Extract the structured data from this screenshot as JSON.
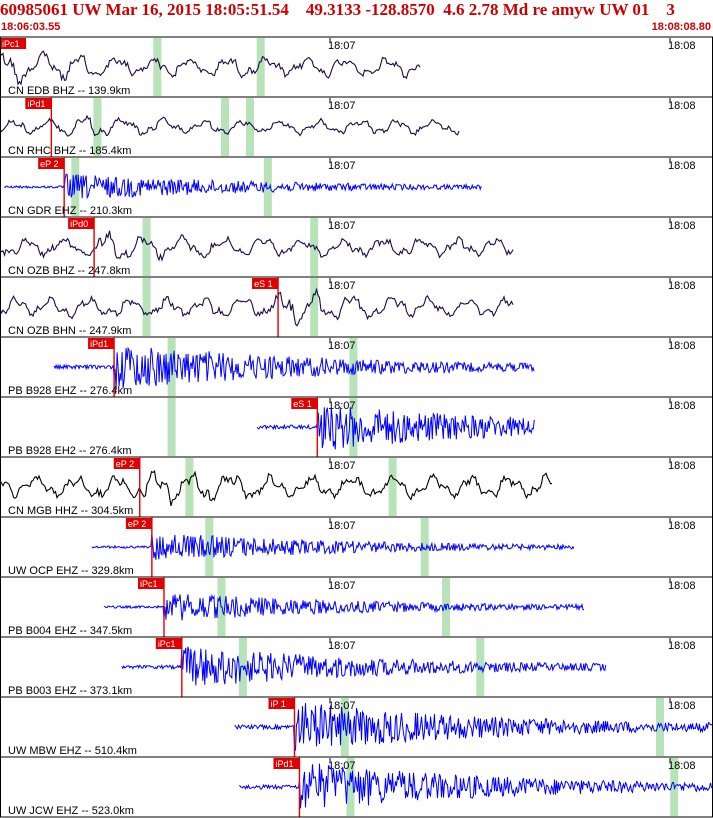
{
  "header": {
    "title": "60985061 UW Mar 16, 2015 18:05:51.54    49.3133 -128.8570  4.6 2.78 Md re amyw UW 01    3",
    "start_time": "18:06:03.55",
    "end_time": "18:08:08.80"
  },
  "time_ticks": {
    "t1": "18:07",
    "t2": "18:08"
  },
  "colors": {
    "title": "#cc0000",
    "pick_box": "#e00000",
    "short_period": "#0000ff",
    "broadband": "#1a0a4a",
    "hh": "#000000",
    "coda_window": "#b8e2b8"
  },
  "traces": [
    {
      "label": "CN EDB BHZ -- 139.9km",
      "pick": "iPc1",
      "pick_frac": 0.0,
      "kind": "bb",
      "amp": 0.75,
      "end_frac": 0.59,
      "coda": [
        0.215,
        0.36
      ]
    },
    {
      "label": "CN RHC BHZ -- 185.4km",
      "pick": "iPd1",
      "pick_frac": 0.072,
      "kind": "bb",
      "amp": 0.55,
      "end_frac": 0.645,
      "coda": [
        0.131,
        0.31,
        0.345
      ]
    },
    {
      "label": "CN GDR EHZ -- 210.3km",
      "pick": "eP 2",
      "pick_frac": 0.09,
      "kind": "sp",
      "amp": 0.5,
      "end_frac": 0.675,
      "coda": [
        0.1,
        0.37
      ]
    },
    {
      "label": "CN OZB BHZ -- 247.8km",
      "pick": "iPd0",
      "pick_frac": 0.132,
      "kind": "bb",
      "amp": 0.7,
      "end_frac": 0.72,
      "coda": [
        0.2,
        0.435
      ]
    },
    {
      "label": "CN OZB BHN -- 247.9km",
      "pick": "eS 1",
      "pick_frac": 0.39,
      "kind": "bb",
      "amp": 0.75,
      "end_frac": 0.72,
      "coda": [
        0.2,
        0.435
      ]
    },
    {
      "label": "PB B928 EHZ -- 276.4km",
      "pick": "iPd1",
      "pick_frac": 0.16,
      "kind": "sp",
      "amp": 0.9,
      "end_frac": 0.75,
      "coda": [
        0.235,
        0.49
      ]
    },
    {
      "label": "PB B928 EH2 -- 276.4km",
      "pick": "eS 1",
      "pick_frac": 0.445,
      "kind": "sp",
      "amp": 0.9,
      "end_frac": 0.75,
      "coda": [
        0.235,
        0.49
      ]
    },
    {
      "label": "CN MGB HHZ -- 304.5km",
      "pick": "eP 2",
      "pick_frac": 0.196,
      "kind": "hh",
      "amp": 0.85,
      "end_frac": 0.775,
      "coda": [
        0.26,
        0.545
      ]
    },
    {
      "label": "UW OCP EHZ -- 329.8km",
      "pick": "eP 2",
      "pick_frac": 0.213,
      "kind": "sp",
      "amp": 0.55,
      "end_frac": 0.805,
      "coda": [
        0.288,
        0.59
      ]
    },
    {
      "label": "PB B004 EHZ -- 347.5km",
      "pick": "iPc1",
      "pick_frac": 0.23,
      "kind": "sp",
      "amp": 0.55,
      "end_frac": 0.82,
      "coda": [
        0.305,
        0.62
      ]
    },
    {
      "label": "PB B003 EHZ -- 373.1km",
      "pick": "iPc1",
      "pick_frac": 0.255,
      "kind": "sp",
      "amp": 0.8,
      "end_frac": 0.85,
      "coda": [
        0.335,
        0.668
      ]
    },
    {
      "label": "UW MBW EHZ -- 510.4km",
      "pick": "iP 1",
      "pick_frac": 0.413,
      "kind": "sp",
      "amp": 0.95,
      "end_frac": 1.0,
      "coda": [
        0.478,
        0.92
      ]
    },
    {
      "label": "UW JCW EHZ -- 523.0km",
      "pick": "iPd1",
      "pick_frac": 0.42,
      "kind": "sp",
      "amp": 0.95,
      "end_frac": 1.0,
      "coda": [
        0.486,
        0.94
      ]
    }
  ]
}
